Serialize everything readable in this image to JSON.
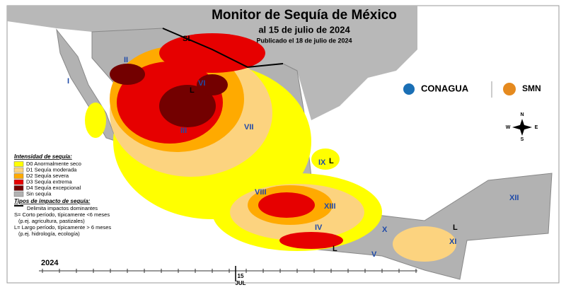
{
  "header": {
    "title": "Monitor de Sequía de México",
    "subtitle": "al 15 de julio de 2024",
    "published": "Publicado el 18 de julio de 2024"
  },
  "logos": [
    "CONAGUA",
    "SMN"
  ],
  "legend": {
    "title": "Intensidad de sequía:",
    "items": [
      {
        "label": "D0 Anormalmente seco",
        "color": "#ffff00"
      },
      {
        "label": "D1 Sequía moderada",
        "color": "#fcd37f"
      },
      {
        "label": "D2 Sequía severa",
        "color": "#ffaa00"
      },
      {
        "label": "D3 Sequía extrema",
        "color": "#e60000"
      },
      {
        "label": "D4 Sequía excepcional",
        "color": "#730000"
      },
      {
        "label": "Sin sequía",
        "color": "#b2b2b2"
      }
    ]
  },
  "impacts": {
    "title": "Tipos de impacto de sequía:",
    "items": [
      "Delimita impactos dominantes",
      "S= Corto período, típicamente <6 meses",
      "(p.ej. agricultura, pastizales)",
      "L= Largo período, típicamente > 6 meses",
      "(p.ej. hidrología, ecología)"
    ]
  },
  "regions": [
    "I",
    "II",
    "III",
    "IV",
    "V",
    "VI",
    "VII",
    "VIII",
    "IX",
    "X",
    "XI",
    "XII",
    "XIII"
  ],
  "impact_labels": [
    "SL",
    "L",
    "L",
    "L",
    "L"
  ],
  "compass": [
    "N",
    "S",
    "E",
    "W"
  ],
  "timeline": {
    "year": "2024",
    "day": "15",
    "month": "JUL"
  }
}
